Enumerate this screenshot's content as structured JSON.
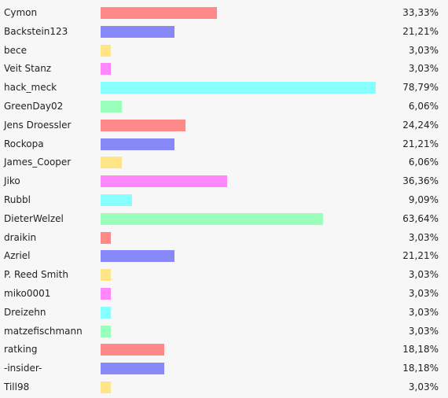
{
  "chart_data": {
    "type": "bar",
    "orientation": "horizontal",
    "title": "",
    "xlabel": "",
    "ylabel": "",
    "xlim": [
      0,
      100
    ],
    "grid": false,
    "legend": "none",
    "palette": [
      "#ff8888",
      "#8888f8",
      "#ffe588",
      "#ff88ff",
      "#88ffff",
      "#99ffbb"
    ],
    "categories": [
      "Cymon",
      "Backstein123",
      "bece",
      "Veit Stanz",
      "hack_meck",
      "GreenDay02",
      "Jens Droessler",
      "Rockopa",
      "James_Cooper",
      "Jiko",
      "Rubbl",
      "DieterWelzel",
      "draikin",
      "Azriel",
      "P. Reed Smith",
      "miko0001",
      "Dreizehn",
      "matzefischmann",
      "ratking",
      "-insider-",
      "Till98"
    ],
    "values": [
      33.33,
      21.21,
      3.03,
      3.03,
      78.79,
      6.06,
      24.24,
      21.21,
      6.06,
      36.36,
      9.09,
      63.64,
      3.03,
      21.21,
      3.03,
      3.03,
      3.03,
      3.03,
      18.18,
      18.18,
      3.03
    ],
    "value_labels": [
      "33,33%",
      "21,21%",
      "3,03%",
      "3,03%",
      "78,79%",
      "6,06%",
      "24,24%",
      "21,21%",
      "6,06%",
      "36,36%",
      "9,09%",
      "63,64%",
      "3,03%",
      "21,21%",
      "3,03%",
      "3,03%",
      "3,03%",
      "3,03%",
      "18,18%",
      "18,18%",
      "3,03%"
    ]
  }
}
